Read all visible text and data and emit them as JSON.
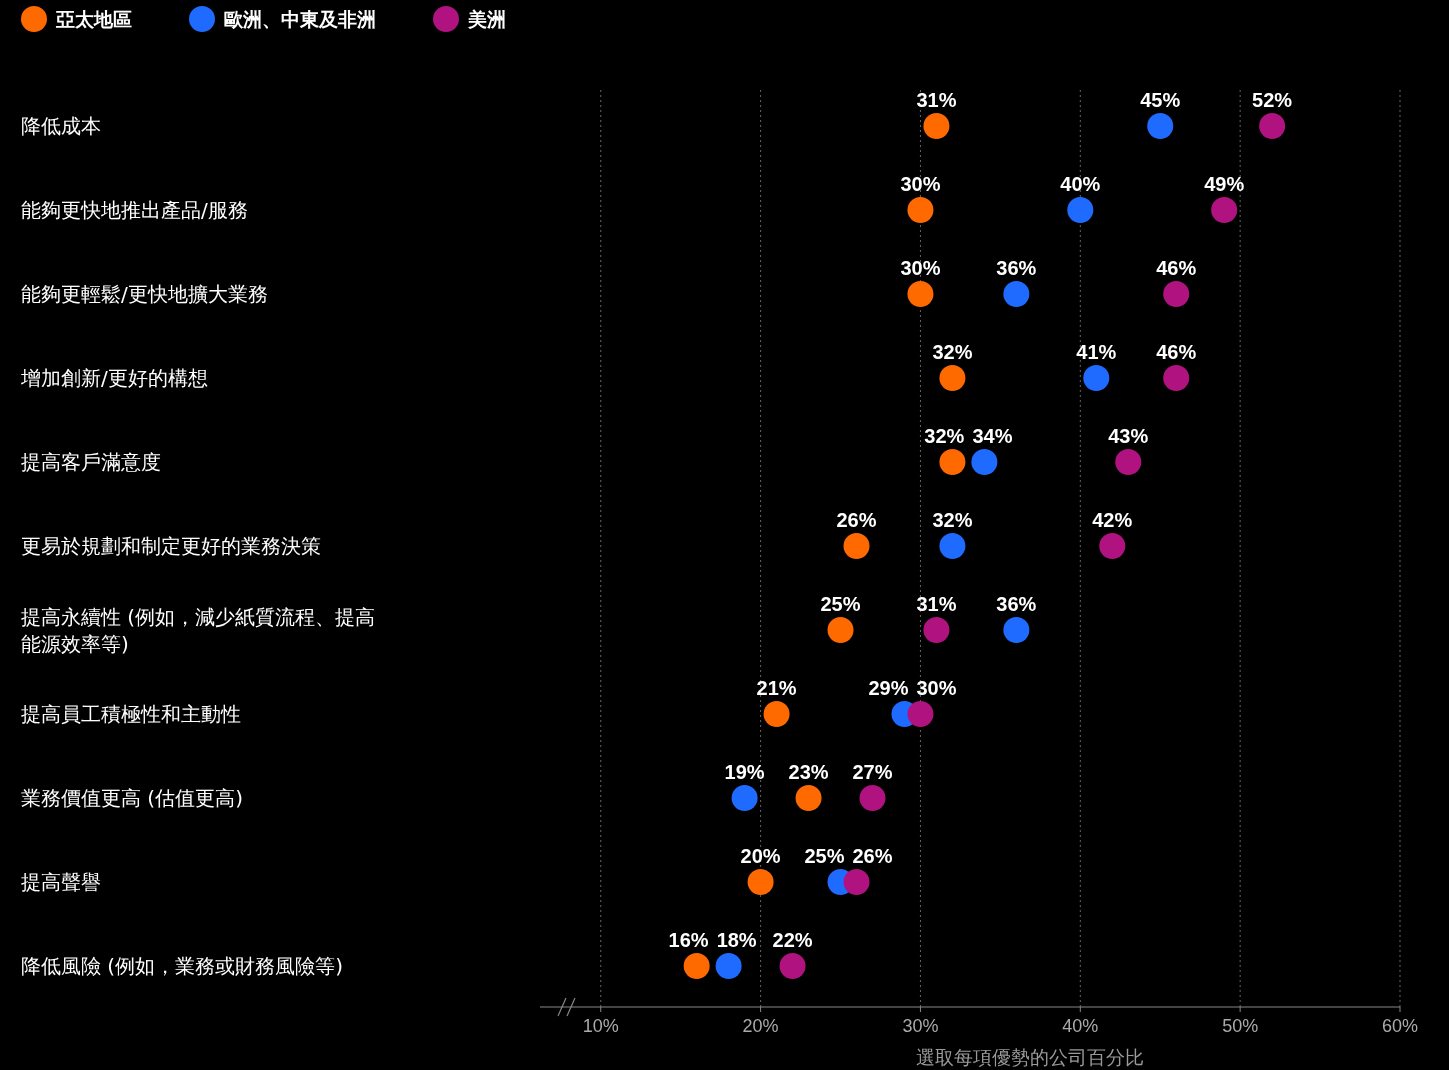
{
  "chart_data": {
    "type": "scatter",
    "orientation": "horizontal",
    "xlabel": "選取每項優勢的公司百分比",
    "categories": [
      "降低成本",
      "能夠更快地推出產品/服務",
      "能夠更輕鬆/更快地擴大業務",
      "增加創新/更好的構想",
      "提高客戶滿意度",
      "更易於規劃和制定更好的業務決策",
      "提高永續性 (例如，減少紙質流程、提高能源效率等)",
      "提高員工積極性和主動性",
      "業務價值更高 (估值更高)",
      "提高聲譽",
      "降低風險 (例如，業務或財務風險等)"
    ],
    "series": [
      {
        "name": "亞太地區",
        "color": "#ff6a00",
        "values": [
          31,
          30,
          30,
          32,
          32,
          26,
          25,
          21,
          23,
          20,
          16
        ],
        "value_labels": [
          "31%",
          "30%",
          "30%",
          "32%",
          "32%",
          "26%",
          "25%",
          "21%",
          "23%",
          "20%",
          "16%"
        ]
      },
      {
        "name": "歐洲、中東及非洲",
        "color": "#1f6bff",
        "values": [
          45,
          40,
          36,
          41,
          34,
          32,
          36,
          29,
          19,
          25,
          18
        ],
        "value_labels": [
          "45%",
          "40%",
          "36%",
          "41%",
          "34%",
          "32%",
          "36%",
          "29%",
          "19%",
          "25%",
          "18%"
        ]
      },
      {
        "name": "美洲",
        "color": "#b0127f",
        "values": [
          52,
          49,
          46,
          46,
          43,
          42,
          31,
          30,
          27,
          26,
          22
        ],
        "value_labels": [
          "52%",
          "49%",
          "46%",
          "46%",
          "43%",
          "42%",
          "31%",
          "30%",
          "27%",
          "26%",
          "22%"
        ]
      }
    ],
    "xlim": [
      6.2,
      60
    ],
    "xticks": [
      {
        "value": 10,
        "label": "10%"
      },
      {
        "value": 20,
        "label": "20%"
      },
      {
        "value": 30,
        "label": "30%"
      },
      {
        "value": 40,
        "label": "40%"
      },
      {
        "value": 50,
        "label": "50%"
      },
      {
        "value": 60,
        "label": "60%"
      }
    ],
    "grid": "x",
    "legend": "top left"
  }
}
